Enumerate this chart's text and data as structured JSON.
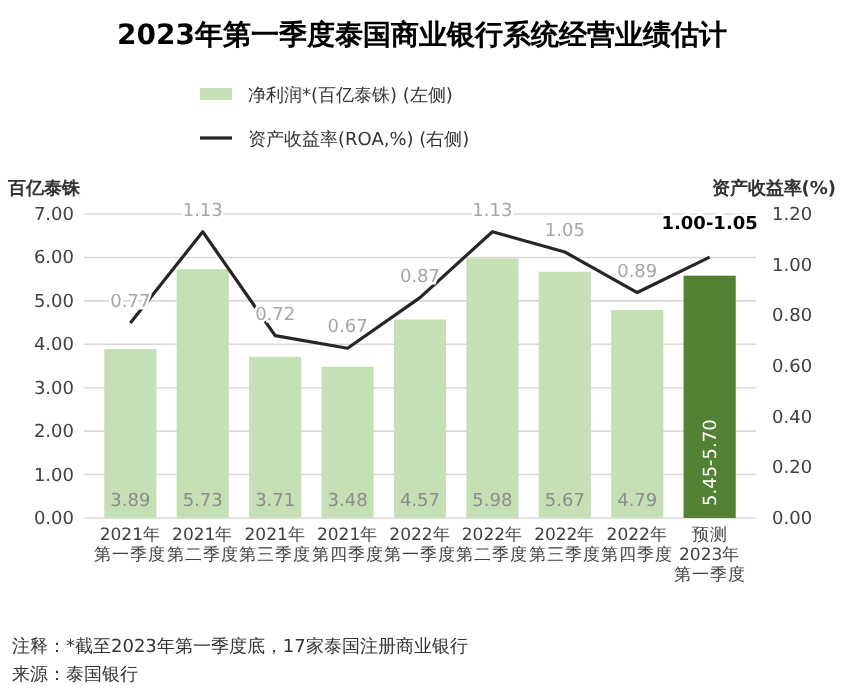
{
  "chart_data": {
    "type": "bar",
    "title": "2023年第一季度泰国商业银行系统经营业绩估计",
    "categories": [
      "2021年第一季度",
      "2021年第二季度",
      "2021年第三季度",
      "2021年第四季度",
      "2022年第一季度",
      "2022年第二季度",
      "2022年第三季度",
      "2022年第四季度",
      "预测2023年第一季度"
    ],
    "series": [
      {
        "name": "净利润*(百亿泰铢) (左侧)",
        "color": "#c5e0b4",
        "colors": [
          "#c5e0b4",
          "#c5e0b4",
          "#c5e0b4",
          "#c5e0b4",
          "#c5e0b4",
          "#c5e0b4",
          "#c5e0b4",
          "#c5e0b4",
          "#548235"
        ],
        "values": [
          3.89,
          5.73,
          3.71,
          3.48,
          4.57,
          5.98,
          5.67,
          4.79,
          5.58
        ],
        "value_labels": [
          "3.89",
          "5.73",
          "3.71",
          "3.48",
          "4.57",
          "5.98",
          "5.67",
          "4.79",
          "5.45-5.70"
        ]
      },
      {
        "type": "line",
        "name": "资产收益率(ROA,%) (右侧)",
        "color": "#262626",
        "axis": "y2",
        "marker": "none",
        "values": [
          0.77,
          1.13,
          0.72,
          0.67,
          0.87,
          1.13,
          1.05,
          0.89,
          1.03
        ],
        "value_labels": [
          "0.77",
          "1.13",
          "0.72",
          "0.67",
          "0.87",
          "1.13",
          "1.05",
          "0.89",
          "1.00-1.05"
        ]
      }
    ],
    "ylabel": "百亿泰铢",
    "y2label": "资产收益率(%)",
    "ylim": [
      0,
      7
    ],
    "yticks": [
      {
        "value": 0,
        "label": "0.00"
      },
      {
        "value": 1,
        "label": "1.00"
      },
      {
        "value": 2,
        "label": "2.00"
      },
      {
        "value": 3,
        "label": "3.00"
      },
      {
        "value": 4,
        "label": "4.00"
      },
      {
        "value": 5,
        "label": "5.00"
      },
      {
        "value": 6,
        "label": "6.00"
      },
      {
        "value": 7,
        "label": "7.00"
      }
    ],
    "y2lim": [
      0,
      1.2
    ],
    "y2ticks": [
      {
        "value": 0,
        "label": "0.00"
      },
      {
        "value": 0.2,
        "label": "0.20"
      },
      {
        "value": 0.4,
        "label": "0.40"
      },
      {
        "value": 0.6,
        "label": "0.60"
      },
      {
        "value": 0.8,
        "label": "0.80"
      },
      {
        "value": 1,
        "label": "1.00"
      },
      {
        "value": 1.2,
        "label": "1.20"
      }
    ],
    "grid": "y",
    "legend": "top",
    "annotations": [
      "注释：*截至2023年第一季度底，17家泰国注册商业银行",
      "来源：泰国银行"
    ]
  }
}
